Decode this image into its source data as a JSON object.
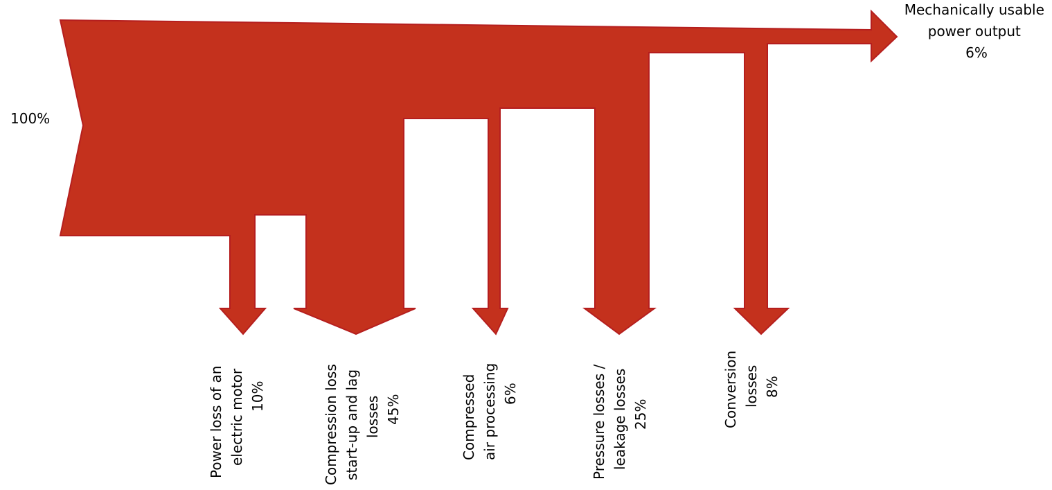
{
  "colors": {
    "fill": "#c4311d",
    "stroke": "#b51e1e"
  },
  "input": {
    "label": "100%"
  },
  "output": {
    "lines": [
      "Mechanically usable",
      "power output",
      "6%"
    ]
  },
  "losses": [
    {
      "name": "power-loss-electric-motor",
      "lines": [
        "Power loss of an",
        "electric motor",
        "10%"
      ]
    },
    {
      "name": "compression-loss",
      "lines": [
        "Compression loss",
        "start-up and lag",
        "losses",
        "45%"
      ]
    },
    {
      "name": "compressed-air-processing",
      "lines": [
        "Compressed",
        "air processing",
        "6%"
      ]
    },
    {
      "name": "pressure-leakage-losses",
      "lines": [
        "Pressure losses /",
        "leakage losses",
        "25%"
      ]
    },
    {
      "name": "conversion-losses",
      "lines": [
        "Conversion",
        "losses",
        "8%"
      ]
    }
  ]
}
